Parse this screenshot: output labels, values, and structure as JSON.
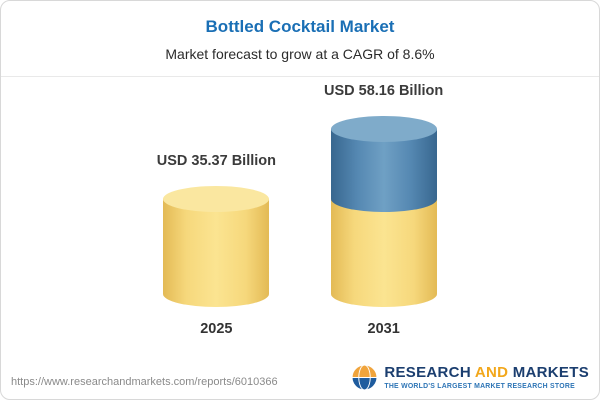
{
  "header": {
    "title": "Bottled Cocktail Market",
    "subtitle": "Market forecast to grow at a CAGR of 8.6%"
  },
  "chart_data": {
    "type": "bar",
    "bar_style": "cylinder-3d",
    "categories": [
      "2025",
      "2031"
    ],
    "values": [
      35.37,
      58.16
    ],
    "value_labels": [
      "USD 35.37 Billion",
      "USD 58.16 Billion"
    ],
    "unit": "USD Billion",
    "title": "Bottled Cocktail Market",
    "subtitle": "Market forecast to grow at a CAGR of 8.6%",
    "cagr": "8.6%",
    "segments_2031": {
      "base": 35.37,
      "growth": 22.79
    },
    "legend_position": "none",
    "grid": false,
    "colors": {
      "title_blue": "#1A6FB5",
      "bar_yellow": "#F6D87C",
      "bar_blue": "#5588B2",
      "label_dark": "#3B3B3B"
    }
  },
  "footer": {
    "url": "https://www.researchandmarkets.com/reports/6010366",
    "logo": {
      "research": "RESEARCH",
      "and": " AND ",
      "markets": "MARKETS",
      "tagline": "THE WORLD'S LARGEST MARKET RESEARCH STORE",
      "colors": {
        "navy": "#1B3E6F",
        "orange": "#F2A71B",
        "tagline_blue": "#2E75B6"
      }
    }
  }
}
